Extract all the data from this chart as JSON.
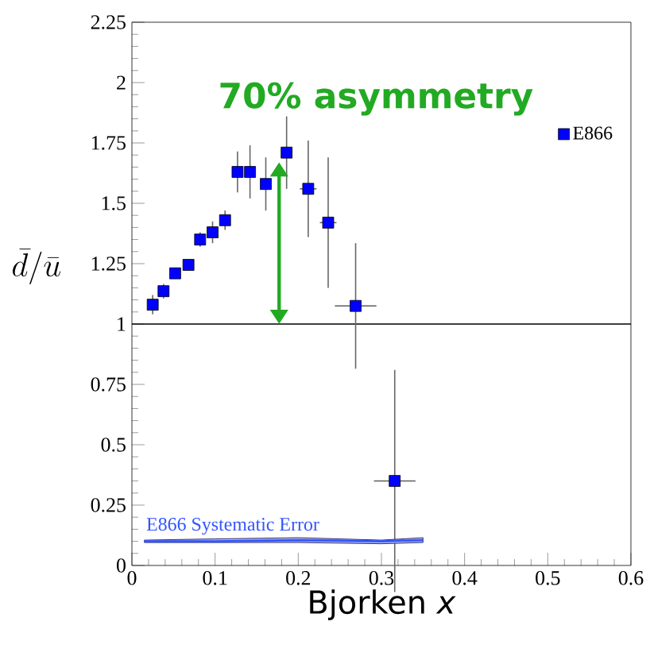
{
  "chart_data": {
    "type": "scatter",
    "xlabel": "Bjorken *x*",
    "ylabel": "\\bar{d}/\\bar{u}",
    "x": [
      0.025,
      0.038,
      0.052,
      0.068,
      0.082,
      0.097,
      0.112,
      0.127,
      0.142,
      0.161,
      0.186,
      0.212,
      0.236,
      0.269,
      0.316
    ],
    "series": [
      {
        "name": "E866",
        "color": "#0000ff",
        "marker": "square",
        "values": [
          1.08,
          1.136,
          1.21,
          1.245,
          1.35,
          1.38,
          1.43,
          1.63,
          1.63,
          1.58,
          1.71,
          1.56,
          1.42,
          1.075,
          0.35
        ],
        "errors": [
          0.04,
          0.03,
          0.02,
          0.02,
          0.03,
          0.045,
          0.04,
          0.085,
          0.11,
          0.11,
          0.15,
          0.2,
          0.27,
          0.26,
          0.46
        ],
        "xerrors": [
          null,
          null,
          null,
          null,
          null,
          null,
          null,
          null,
          null,
          null,
          null,
          0.01,
          0.01,
          0.025,
          0.025
        ]
      },
      {
        "name": "E866 Systematic Error",
        "type": "line",
        "marker": "none",
        "color": "#3355ff",
        "x": [
          0.015,
          0.1,
          0.2,
          0.3,
          0.35
        ],
        "values": [
          0.1,
          0.1,
          0.105,
          0.1,
          0.105
        ],
        "lower": [
          0.095,
          0.095,
          0.095,
          0.09,
          0.095
        ],
        "upper": [
          0.105,
          0.11,
          0.115,
          0.105,
          0.115
        ]
      }
    ],
    "ref_lines": [
      {
        "axis": "y",
        "value": 1,
        "color": "#000000"
      }
    ],
    "annotations": [
      {
        "text": "70% asymmetry",
        "x": 0.177,
        "y": 1.67
      }
    ],
    "xlim": [
      0,
      0.6
    ],
    "ylim": [
      0,
      2.25
    ],
    "xticks": [
      0,
      0.1,
      0.2,
      0.3,
      0.4,
      0.5,
      0.6
    ],
    "yticks": [
      0,
      0.25,
      0.5,
      0.75,
      1,
      1.25,
      1.5,
      1.75,
      2,
      2.25
    ],
    "grid": false,
    "legend": "top right"
  }
}
